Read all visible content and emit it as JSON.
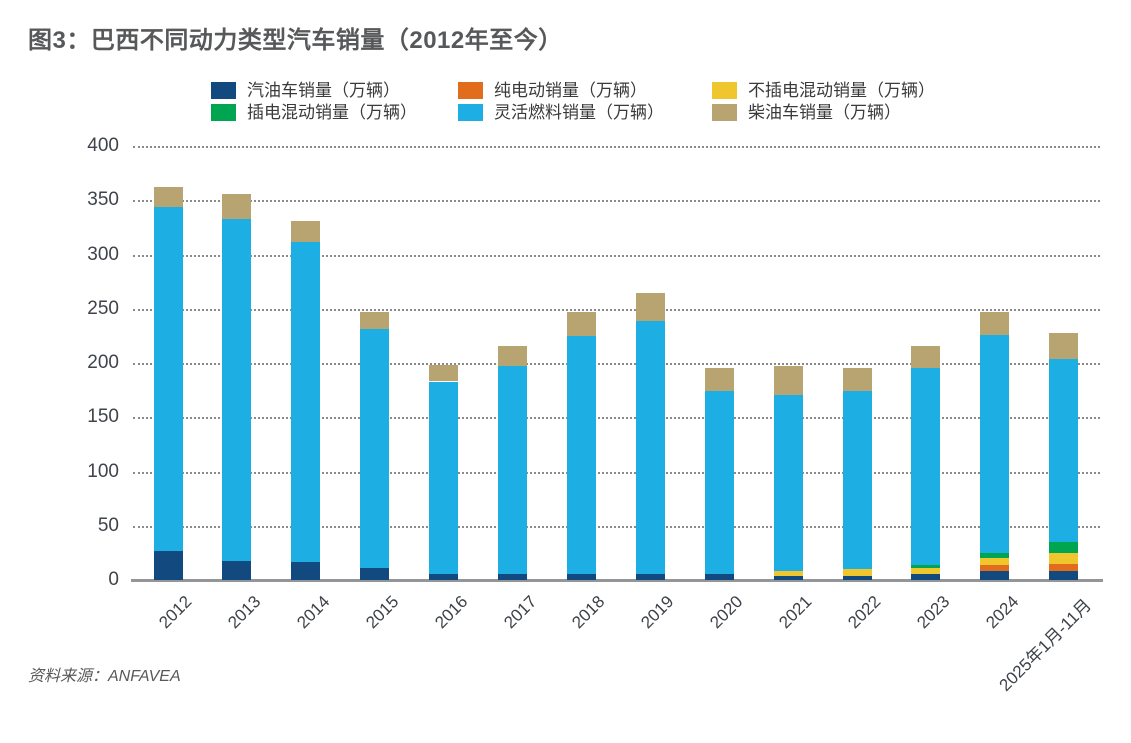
{
  "title": "图3：巴西不同动力类型汽车销量（2012年至今）",
  "source": "资料来源：ANFAVEA",
  "colors": {
    "gasoline": "#12497f",
    "bev": "#e16c1c",
    "hev": "#f0c62f",
    "phev": "#00a551",
    "flex": "#1dafe3",
    "diesel": "#b7a471",
    "title_text": "#57585a",
    "axis_text": "#3f434a",
    "baseline": "#939598"
  },
  "legend": [
    {
      "key": "gasoline",
      "label": "汽油车销量（万辆）"
    },
    {
      "key": "bev",
      "label": "纯电动销量（万辆）"
    },
    {
      "key": "hev",
      "label": "不插电混动销量（万辆）"
    },
    {
      "key": "phev",
      "label": "插电混动销量（万辆）"
    },
    {
      "key": "flex",
      "label": "灵活燃料销量（万辆）"
    },
    {
      "key": "diesel",
      "label": "柴油车销量（万辆）"
    }
  ],
  "chart_data": {
    "type": "bar",
    "stacked": true,
    "title": "图3：巴西不同动力类型汽车销量（2012年至今）",
    "xlabel": "",
    "ylabel": "",
    "ylim": [
      0,
      400
    ],
    "ytick_step": 50,
    "grid": "horizontal-dotted",
    "legend_position": "top",
    "categories": [
      "2012",
      "2013",
      "2014",
      "2015",
      "2016",
      "2017",
      "2018",
      "2019",
      "2020",
      "2021",
      "2022",
      "2023",
      "2024",
      "2025年1月-11月"
    ],
    "series": [
      {
        "name": "汽油车销量（万辆）",
        "key": "gasoline",
        "values": [
          27,
          18,
          17,
          11,
          6,
          6,
          6,
          6,
          6,
          4,
          4,
          6,
          8,
          8
        ]
      },
      {
        "name": "纯电动销量（万辆）",
        "key": "bev",
        "values": [
          0,
          0,
          0,
          0,
          0,
          0,
          0,
          0,
          0,
          0,
          0,
          0,
          6,
          7
        ]
      },
      {
        "name": "不插电混动销量（万辆）",
        "key": "hev",
        "values": [
          0,
          0,
          0,
          0,
          0,
          0,
          0,
          0,
          0,
          4,
          6,
          5,
          6,
          10
        ]
      },
      {
        "name": "插电混动销量（万辆）",
        "key": "phev",
        "values": [
          0,
          0,
          0,
          0,
          0,
          0,
          0,
          0,
          0,
          0,
          0,
          3,
          5,
          10
        ]
      },
      {
        "name": "灵活燃料销量（万辆）",
        "key": "flex",
        "values": [
          317,
          315,
          295,
          220,
          177,
          191,
          219,
          233,
          168,
          163,
          164,
          181,
          201,
          169
        ]
      },
      {
        "name": "柴油车销量（万辆）",
        "key": "diesel",
        "values": [
          18,
          23,
          19,
          16,
          15,
          19,
          22,
          26,
          21,
          26,
          21,
          21,
          21,
          24
        ]
      }
    ],
    "totals": [
      362,
      356,
      331,
      247,
      198,
      216,
      247,
      265,
      195,
      197,
      195,
      216,
      247,
      228
    ]
  }
}
